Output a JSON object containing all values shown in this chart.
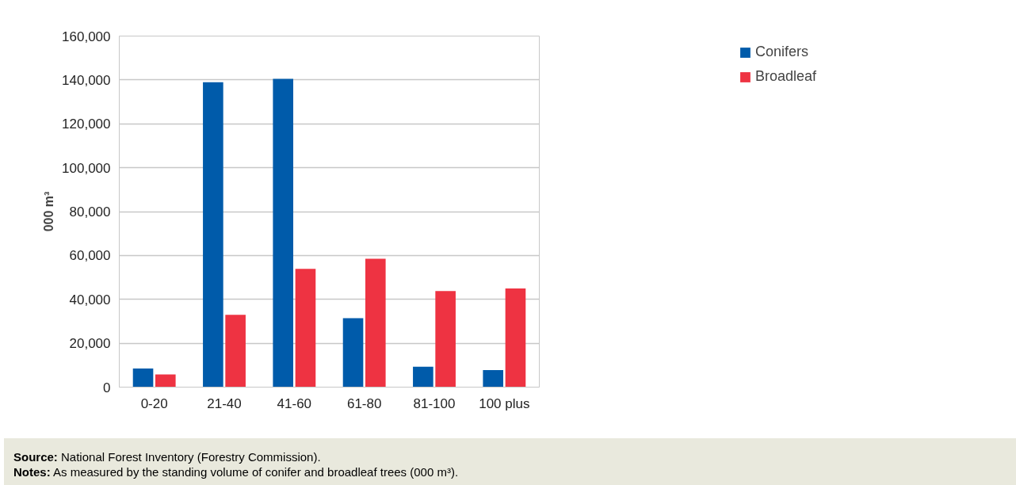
{
  "chart_data": {
    "type": "bar",
    "ylabel": "000 m³",
    "categories": [
      "0-20",
      "21-40",
      "41-60",
      "61-80",
      "81-100",
      "100 plus"
    ],
    "series": [
      {
        "name": "Conifers",
        "color": "#005baa",
        "values": [
          8500,
          139000,
          140500,
          31400,
          9300,
          7800
        ]
      },
      {
        "name": "Broadleaf",
        "color": "#ee3342",
        "values": [
          5800,
          33000,
          53900,
          58500,
          43800,
          45000
        ]
      }
    ],
    "ylim": [
      0,
      160000
    ],
    "yticks": [
      {
        "value": 0,
        "label": "0"
      },
      {
        "value": 20000,
        "label": "20,000"
      },
      {
        "value": 40000,
        "label": "40,000"
      },
      {
        "value": 60000,
        "label": "60,000"
      },
      {
        "value": 80000,
        "label": "80,000"
      },
      {
        "value": 100000,
        "label": "100,000"
      },
      {
        "value": 120000,
        "label": "120,000"
      },
      {
        "value": 140000,
        "label": "140,000"
      },
      {
        "value": 160000,
        "label": "160,000"
      }
    ],
    "grid": "y",
    "legend": "top right",
    "annotations": [
      "Source: National Forest Inventory (Forestry Commission).",
      "Notes: As measured by the standing volume of conifer and broadleaf trees (000 m³)."
    ]
  }
}
